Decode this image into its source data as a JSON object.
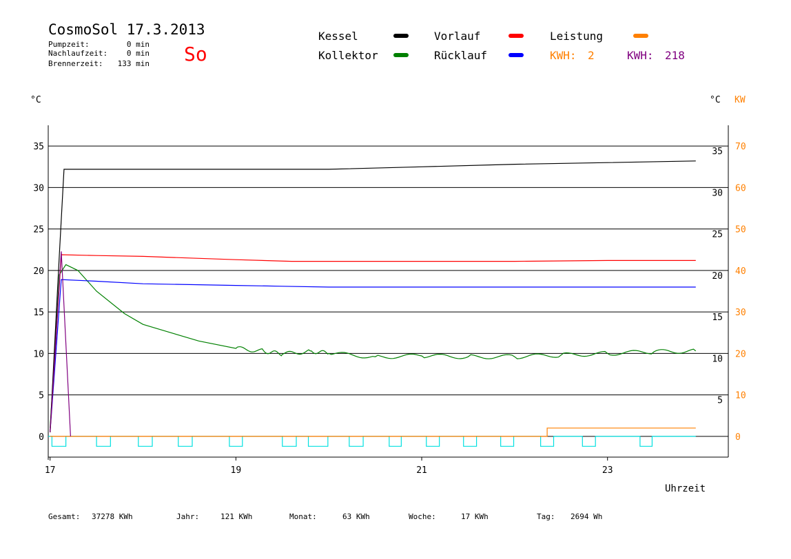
{
  "header": {
    "title": "CosmoSol 17.3.2013",
    "day": "So",
    "stats": [
      {
        "label": "Pumpzeit:",
        "value": "0 min"
      },
      {
        "label": "Nachlaufzeit:",
        "value": "0 min"
      },
      {
        "label": "Brennerzeit:",
        "value": "133 min"
      }
    ]
  },
  "legend": {
    "items": [
      {
        "label": "Kessel",
        "color": "#000000"
      },
      {
        "label": "Vorlauf",
        "color": "#ff0000"
      },
      {
        "label": "Leistung",
        "color": "#ff8000"
      },
      {
        "label": "Kollektor",
        "color": "#008000"
      },
      {
        "label": "Rücklauf",
        "color": "#0000ff"
      }
    ],
    "kwh_left": {
      "label": "KWH:",
      "value": "2",
      "color": "#ff8000"
    },
    "kwh_right": {
      "label": "KWH:",
      "value": "218",
      "color": "#800080"
    }
  },
  "footer": {
    "items": [
      {
        "label": "Gesamt:",
        "value": "37278 KWh"
      },
      {
        "label": "Jahr:",
        "value": "121 KWh"
      },
      {
        "label": "Monat:",
        "value": "63 KWh"
      },
      {
        "label": "Woche:",
        "value": "17 KWh"
      },
      {
        "label": "Tag:",
        "value": "2694 Wh"
      }
    ]
  },
  "chart_data": {
    "type": "line",
    "xlabel": "Uhrzeit",
    "ylabel_left": "°C",
    "ylabel_right": "°C",
    "ylabel_right2": "KW",
    "xlim": [
      16.98,
      24.3
    ],
    "ylim": [
      -2.5,
      37.5
    ],
    "ylim_kw": [
      -5,
      75
    ],
    "x_ticks": [
      17,
      19,
      21,
      23
    ],
    "y_ticks_left": [
      0,
      5,
      10,
      15,
      20,
      25,
      30,
      35
    ],
    "y_ticks_right": [
      5,
      10,
      15,
      20,
      25,
      30,
      35
    ],
    "y_ticks_kw": [
      0,
      10,
      20,
      30,
      40,
      50,
      60,
      70
    ],
    "grid": true,
    "colors": {
      "pump_signal": "#00e0e0",
      "kwh_purple": "#800080"
    },
    "series": [
      {
        "name": "Kessel",
        "color": "#000000",
        "x": [
          17.0,
          17.1,
          17.15,
          17.5,
          19.0,
          20.0,
          21.0,
          22.0,
          23.0,
          23.95
        ],
        "y": [
          0.5,
          22.0,
          32.2,
          32.2,
          32.2,
          32.2,
          32.5,
          32.8,
          33.0,
          33.2
        ]
      },
      {
        "name": "Vorlauf",
        "color": "#ff0000",
        "x": [
          17.0,
          17.12,
          17.5,
          18.0,
          18.5,
          19.0,
          19.6,
          20.0,
          21.0,
          22.0,
          23.0,
          23.95
        ],
        "y": [
          0.5,
          21.9,
          21.8,
          21.7,
          21.5,
          21.3,
          21.1,
          21.1,
          21.1,
          21.1,
          21.2,
          21.2
        ]
      },
      {
        "name": "Rücklauf",
        "color": "#0000ff",
        "x": [
          17.0,
          17.12,
          17.5,
          18.0,
          18.5,
          19.0,
          19.5,
          20.0,
          21.0,
          22.0,
          23.0,
          23.95
        ],
        "y": [
          0.5,
          18.9,
          18.7,
          18.4,
          18.3,
          18.2,
          18.1,
          18.0,
          18.0,
          18.0,
          18.0,
          18.0
        ]
      },
      {
        "name": "Kollektor",
        "color": "#008000",
        "x": [
          17.0,
          17.1,
          17.17,
          17.3,
          17.5,
          17.8,
          18.0,
          18.3,
          18.6,
          19.0,
          19.3,
          19.5,
          19.8,
          20.0,
          20.5,
          21.0,
          21.5,
          22.0,
          22.5,
          23.0,
          23.5,
          23.95
        ],
        "y": [
          1.0,
          19.5,
          20.7,
          20.0,
          17.5,
          14.8,
          13.5,
          12.5,
          11.5,
          10.6,
          10.3,
          9.9,
          10.3,
          10.0,
          9.6,
          9.7,
          9.6,
          9.6,
          9.8,
          10.0,
          10.2,
          10.3
        ]
      },
      {
        "name": "Leistung",
        "color": "#ff8000",
        "x": [
          17.0,
          22.35,
          22.35,
          23.95
        ],
        "y": [
          0,
          0,
          1.0,
          1.0
        ]
      },
      {
        "name": "KWH",
        "color": "#800080",
        "x": [
          17.0,
          17.12,
          17.22
        ],
        "y": [
          0.5,
          22.3,
          0.0
        ]
      }
    ],
    "pump_pulses": [
      [
        17.02,
        17.17
      ],
      [
        17.5,
        17.65
      ],
      [
        17.95,
        18.1
      ],
      [
        18.38,
        18.53
      ],
      [
        18.93,
        19.07
      ],
      [
        19.5,
        19.65
      ],
      [
        19.78,
        19.99
      ],
      [
        20.22,
        20.37
      ],
      [
        20.65,
        20.78
      ],
      [
        21.05,
        21.19
      ],
      [
        21.45,
        21.59
      ],
      [
        21.85,
        21.99
      ],
      [
        22.28,
        22.42
      ],
      [
        22.73,
        22.87
      ],
      [
        23.35,
        23.48
      ]
    ]
  }
}
